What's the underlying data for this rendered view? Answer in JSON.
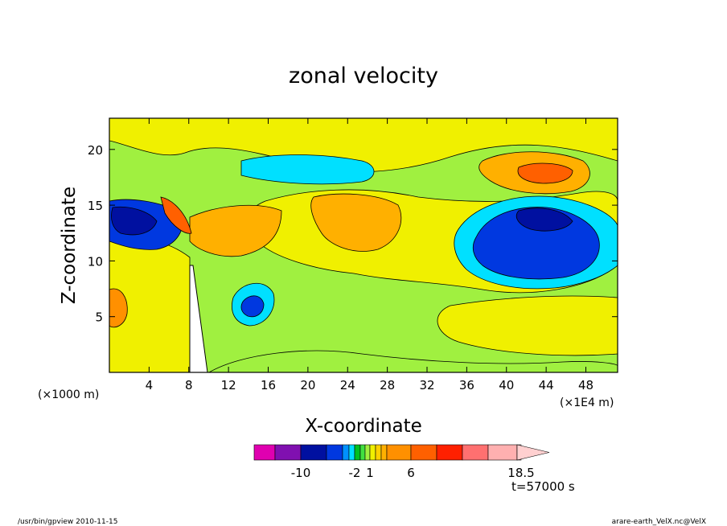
{
  "chart_data": {
    "type": "heatmap",
    "title": "zonal velocity",
    "xlabel": "X-coordinate",
    "ylabel": "Z-coordinate",
    "x_unit": "(×1E4 m)",
    "y_unit": "(×1000 m)",
    "xlim": [
      0,
      51.2
    ],
    "ylim": [
      0,
      22.8
    ],
    "x_ticks": [
      "4",
      "8",
      "12",
      "16",
      "20",
      "24",
      "28",
      "32",
      "36",
      "40",
      "44",
      "48"
    ],
    "y_ticks": [
      "5",
      "10",
      "15",
      "20"
    ],
    "colorbar": {
      "levels": [
        -14,
        -12,
        -10,
        -8,
        -6,
        -4,
        -2,
        -1,
        0,
        1,
        2,
        3,
        4,
        6,
        8,
        10,
        12,
        14,
        18.5
      ],
      "colors": [
        "#e000b0",
        "#8010b0",
        "#0010a0",
        "#0038e0",
        "#0090ff",
        "#00e0ff",
        "#00c020",
        "#40e040",
        "#a0f040",
        "#f0f000",
        "#ffd000",
        "#ffb000",
        "#ff9000",
        "#ff6000",
        "#ff2000",
        "#ff7070",
        "#ffb0b0",
        "#ffd0d0"
      ],
      "tick_labels": [
        "-10",
        "-2",
        "1",
        "6",
        "18.5"
      ]
    },
    "time_label": "t=57000 s",
    "grid": false,
    "legend": "bottom colorbar"
  },
  "footer": {
    "left": "/usr/bin/gpview 2010-11-15",
    "right": "arare-earth_VelX.nc@VelX"
  }
}
